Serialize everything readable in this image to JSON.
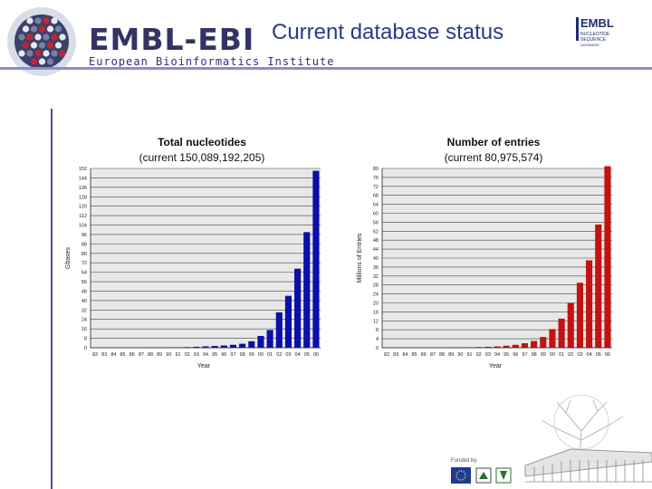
{
  "header": {
    "logo_text": "EMBL-EBI",
    "logo_subtitle": "European Bioinformatics Institute",
    "title": "Current database status",
    "right_logo": {
      "text": "EMBL",
      "line1": "NUCLEOTIDE",
      "line2": "SEQUENCE",
      "line3": "DATABASE"
    }
  },
  "footer": {
    "funded_by": "Funded by"
  },
  "colors": {
    "left_bars": "#0a10a8",
    "right_bars": "#c41212",
    "plot_bg": "#e8e8e8",
    "title": "#2b3a8c"
  },
  "chart_data": [
    {
      "type": "bar",
      "title": "Total nucleotides",
      "subtitle": "(current 150,089,192,205)",
      "xlabel": "Year",
      "ylabel": "Gbases",
      "ylim": [
        0,
        152
      ],
      "yticks": [
        0,
        8,
        16,
        24,
        32,
        40,
        48,
        56,
        64,
        72,
        80,
        88,
        96,
        104,
        112,
        120,
        128,
        136,
        144,
        152
      ],
      "categories": [
        "82",
        "83",
        "84",
        "85",
        "86",
        "87",
        "88",
        "89",
        "90",
        "91",
        "92",
        "93",
        "94",
        "95",
        "96",
        "97",
        "98",
        "99",
        "00",
        "01",
        "02",
        "03",
        "04",
        "05",
        "06"
      ],
      "values": [
        0,
        0,
        0,
        0,
        0,
        0,
        0.1,
        0.1,
        0.2,
        0.3,
        0.5,
        0.8,
        1.2,
        1.5,
        1.9,
        2.5,
        3.4,
        5.5,
        10,
        15,
        30,
        44,
        67,
        98,
        150
      ]
    },
    {
      "type": "bar",
      "title": "Number of entries",
      "subtitle": "(current 80,975,574)",
      "xlabel": "Year",
      "ylabel": "Millions of Entries",
      "ylim": [
        0,
        80
      ],
      "yticks": [
        0,
        4,
        8,
        12,
        16,
        20,
        24,
        28,
        32,
        36,
        40,
        44,
        48,
        52,
        56,
        60,
        64,
        68,
        72,
        76,
        80
      ],
      "categories": [
        "82",
        "83",
        "84",
        "85",
        "86",
        "87",
        "88",
        "89",
        "90",
        "91",
        "92",
        "93",
        "94",
        "95",
        "96",
        "97",
        "98",
        "99",
        "00",
        "01",
        "02",
        "03",
        "04",
        "05",
        "06"
      ],
      "values": [
        0,
        0,
        0,
        0,
        0,
        0,
        0,
        0.1,
        0.1,
        0.2,
        0.3,
        0.4,
        0.6,
        0.9,
        1.3,
        2.0,
        3.0,
        4.8,
        8.3,
        13,
        20,
        29,
        39,
        55,
        81
      ]
    }
  ]
}
